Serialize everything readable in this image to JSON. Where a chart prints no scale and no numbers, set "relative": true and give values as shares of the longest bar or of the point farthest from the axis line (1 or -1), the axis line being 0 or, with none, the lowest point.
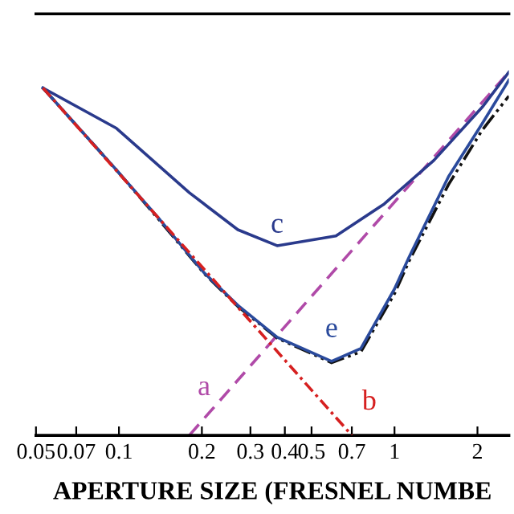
{
  "chart_data": {
    "type": "line",
    "relative": true,
    "xlabel": "APERTURE SIZE (FRESNEL NUMBE",
    "log": "x",
    "xlim": [
      0.05,
      2.6
    ],
    "xticks": [
      0.05,
      0.07,
      0.1,
      0.2,
      0.3,
      0.4,
      0.5,
      0.7,
      1,
      2
    ],
    "grid": false,
    "legend": false,
    "series": [
      {
        "name": "a",
        "color": "#b04aa8",
        "line_style": "dashed",
        "x": [
          0.18,
          2.6
        ],
        "values": [
          0,
          1
        ]
      },
      {
        "name": "b",
        "color": "#d62020",
        "line_style": "dashdot",
        "x": [
          0.053,
          0.7
        ],
        "values": [
          0.956,
          0
        ]
      },
      {
        "name": "c",
        "color": "#2a3a8c",
        "line_style": "solid",
        "x": [
          0.053,
          0.098,
          0.18,
          0.27,
          0.375,
          0.613,
          0.918,
          1.39,
          2.08,
          2.6
        ],
        "values": [
          0.956,
          0.845,
          0.668,
          0.566,
          0.522,
          0.549,
          0.637,
          0.757,
          0.903,
          1
        ]
      },
      {
        "color": "#111111",
        "line_style": "dashdotdot",
        "x": [
          0.053,
          0.098,
          0.141,
          0.204,
          0.27,
          0.375,
          0.591,
          0.755,
          1,
          1.13,
          1.57,
          2.08,
          2.6
        ],
        "values": [
          0.956,
          0.73,
          0.59,
          0.445,
          0.355,
          0.268,
          0.2,
          0.23,
          0.39,
          0.48,
          0.69,
          0.84,
          0.934
        ]
      },
      {
        "name": "e",
        "color": "#2a4a9c",
        "line_style": "solid",
        "x": [
          0.053,
          0.098,
          0.141,
          0.204,
          0.27,
          0.375,
          0.591,
          0.755,
          1,
          1.13,
          1.57,
          2.08,
          2.6
        ],
        "values": [
          0.956,
          0.73,
          0.593,
          0.447,
          0.358,
          0.27,
          0.204,
          0.239,
          0.403,
          0.491,
          0.712,
          0.858,
          0.978
        ]
      }
    ]
  }
}
